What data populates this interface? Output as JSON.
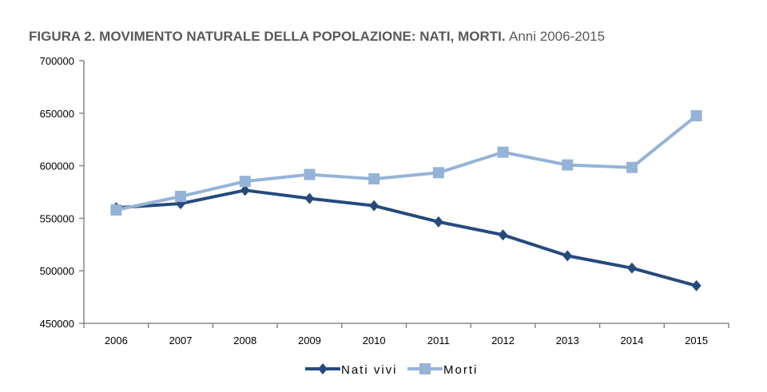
{
  "chart_data": {
    "type": "line",
    "title": "FIGURA 2. MOVIMENTO NATURALE DELLA POPOLAZIONE: NATI, MORTI.",
    "subtitle": "Anni 2006-2015",
    "xlabel": "",
    "ylabel": "",
    "categories": [
      "2006",
      "2007",
      "2008",
      "2009",
      "2010",
      "2011",
      "2012",
      "2013",
      "2014",
      "2015"
    ],
    "ylim": [
      450000,
      700000
    ],
    "yticks": [
      450000,
      500000,
      550000,
      600000,
      650000,
      700000
    ],
    "grid": false,
    "legend_position": "bottom",
    "series": [
      {
        "name": "Nati vivi",
        "color": "#254a7c",
        "marker": "diamond",
        "values": [
          560010,
          563933,
          576659,
          568857,
          561944,
          546607,
          534186,
          514308,
          502596,
          485780
        ]
      },
      {
        "name": "Morti",
        "color": "#95b3d7",
        "marker": "square",
        "values": [
          557892,
          570801,
          585126,
          591663,
          587488,
          593402,
          612883,
          600744,
          598364,
          647571
        ]
      }
    ]
  }
}
